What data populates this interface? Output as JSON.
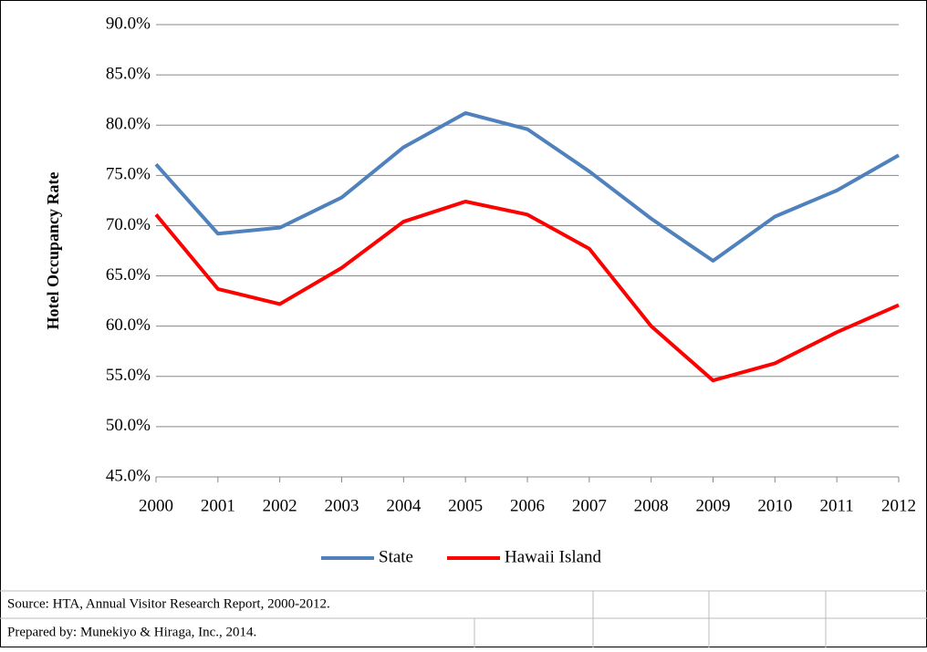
{
  "chart_data": {
    "type": "line",
    "y_label": "Hotel Occupancy Rate",
    "categories": [
      "2000",
      "2001",
      "2002",
      "2003",
      "2004",
      "2005",
      "2006",
      "2007",
      "2008",
      "2009",
      "2010",
      "2011",
      "2012"
    ],
    "series": [
      {
        "name": "State",
        "color": "#4f81bd",
        "values": [
          76.1,
          69.2,
          69.8,
          72.8,
          77.8,
          81.2,
          79.6,
          75.4,
          70.7,
          66.5,
          70.9,
          73.5,
          77.0
        ]
      },
      {
        "name": "Hawaii Island",
        "color": "#ff0000",
        "values": [
          71.1,
          63.7,
          62.2,
          65.8,
          70.4,
          72.4,
          71.1,
          67.7,
          60.0,
          54.6,
          56.3,
          59.4,
          62.1
        ]
      }
    ],
    "ylim": [
      45,
      90
    ],
    "yticks": [
      {
        "value": 45,
        "label": "45.0%"
      },
      {
        "value": 50,
        "label": "50.0%"
      },
      {
        "value": 55,
        "label": "55.0%"
      },
      {
        "value": 60,
        "label": "60.0%"
      },
      {
        "value": 65,
        "label": "65.0%"
      },
      {
        "value": 70,
        "label": "70.0%"
      },
      {
        "value": 75,
        "label": "75.0%"
      },
      {
        "value": 80,
        "label": "80.0%"
      },
      {
        "value": 85,
        "label": "85.0%"
      },
      {
        "value": 90,
        "label": "90.0%"
      }
    ],
    "grid": true,
    "legend": "bottom"
  },
  "footer": {
    "source": "Source: HTA, Annual Visitor Research Report, 2000-2012.",
    "prepared": "Prepared by: Munekiyo & Hiraga, Inc., 2014."
  }
}
